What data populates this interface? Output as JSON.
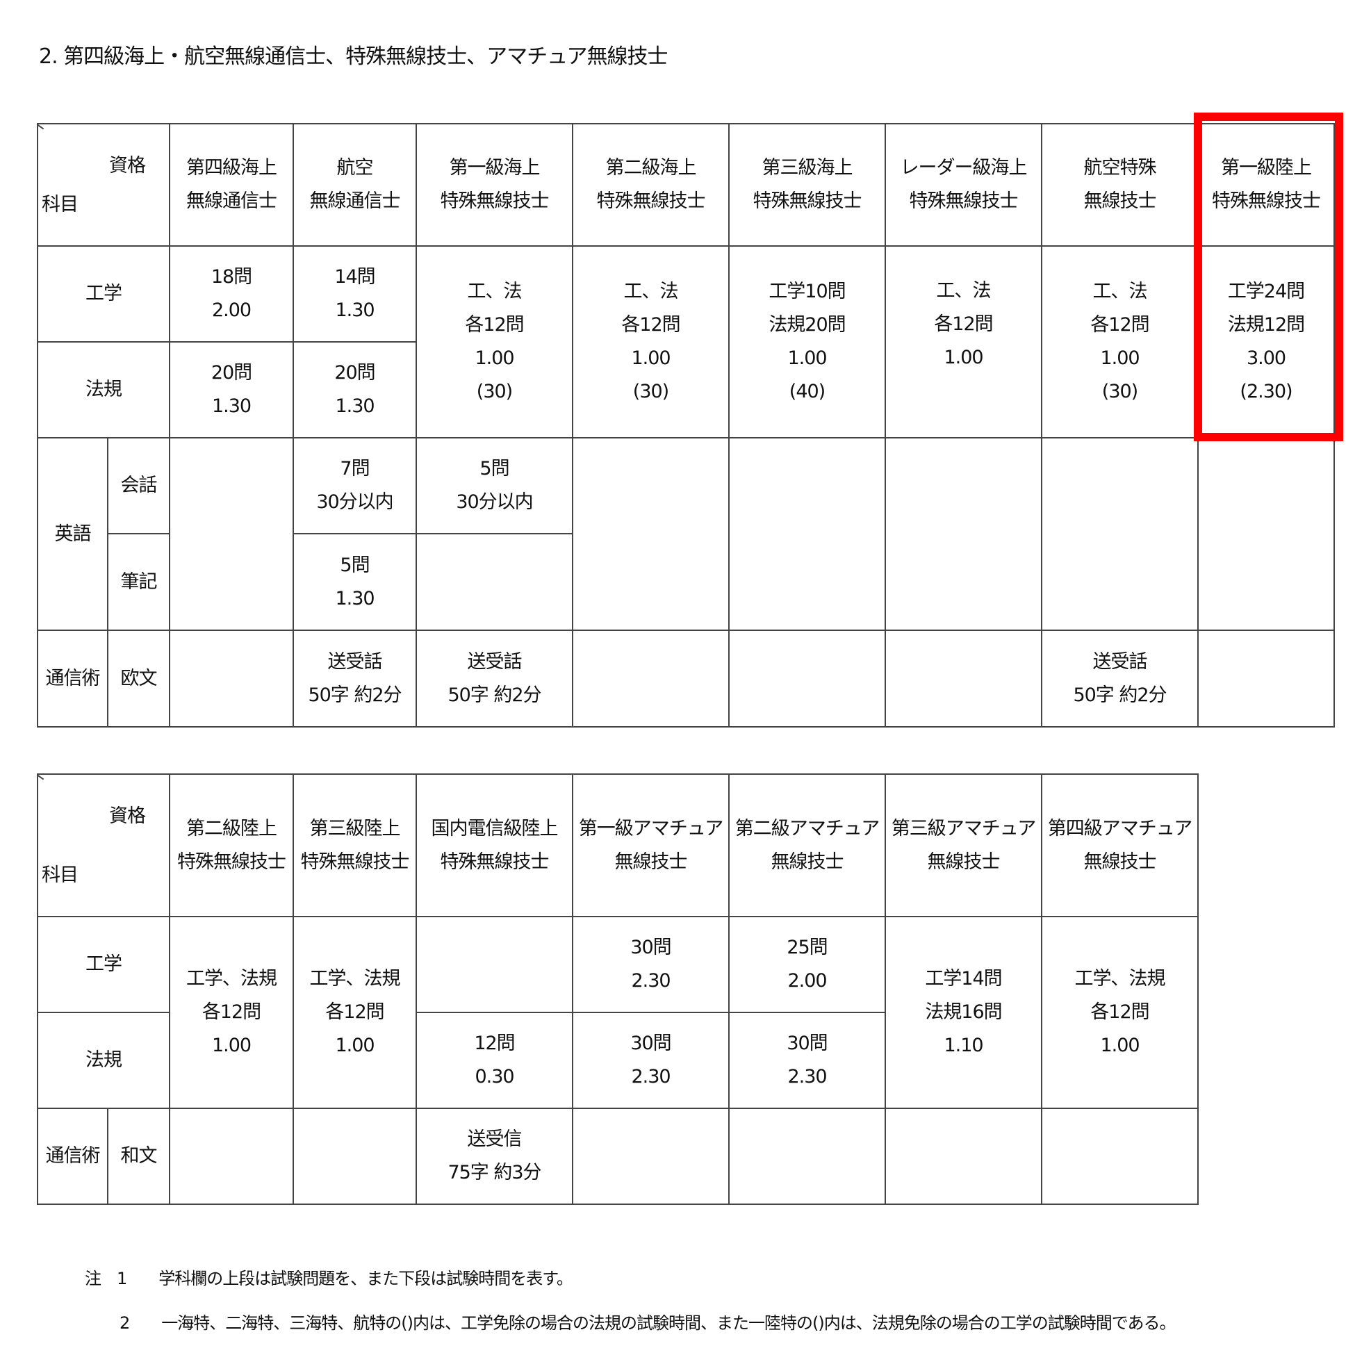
{
  "title": "2. 第四級海上・航空無線通信士、特殊無線技士、アマチュア無線技士",
  "corner": {
    "qualification": "資格",
    "subject": "科目"
  },
  "subjects": {
    "engineering": "工学",
    "law": "法規",
    "english": "英語",
    "conversation": "会話",
    "writing": "筆記",
    "telegraphy": "通信術",
    "european": "欧文",
    "japanese": "和文"
  },
  "table1": {
    "headers": [
      "第四級海上\n無線通信士",
      "航空\n無線通信士",
      "第一級海上\n特殊無線技士",
      "第二級海上\n特殊無線技士",
      "第三級海上\n特殊無線技士",
      "レーダー級海上\n特殊無線技士",
      "航空特殊\n無線技士",
      "第一級陸上\n特殊無線技士"
    ],
    "engineering": [
      "18問\n2.00",
      "14問\n1.30"
    ],
    "combined": [
      "工、法\n各12問\n1.00\n(30)",
      "工、法\n各12問\n1.00\n(30)",
      "工学10問\n法規20問\n1.00\n(40)",
      "工、法\n各12問\n1.00",
      "工、法\n各12問\n1.00\n(30)",
      "工学24問\n法規12問\n3.00\n(2.30)"
    ],
    "law": [
      "20問\n1.30",
      "20問\n1.30"
    ],
    "conversation": [
      "",
      "7問\n30分以内",
      "5問\n30分以内"
    ],
    "writing": [
      "5問\n1.30",
      ""
    ],
    "telegraphy": [
      "",
      "送受話\n50字 約2分",
      "送受話\n50字 約2分",
      "",
      "",
      "",
      "送受話\n50字 約2分",
      ""
    ],
    "highlight_color": "#ff0000"
  },
  "table2": {
    "headers": [
      "第二級陸上\n特殊無線技士",
      "第三級陸上\n特殊無線技士",
      "国内電信級陸上\n特殊無線技士",
      "第一級アマチュア\n無線技士",
      "第二級アマチュア\n無線技士",
      "第三級アマチュア\n無線技士",
      "第四級アマチュア\n無線技士"
    ],
    "rikuto2": "工学、法規\n各12問\n1.00",
    "rikuto3": "工学、法規\n各12問\n1.00",
    "kokunai_eng": "",
    "ama1_eng": "30問\n2.30",
    "ama2_eng": "25問\n2.00",
    "ama3": "工学14問\n法規16問\n1.10",
    "ama4": "工学、法規\n各12問\n1.00",
    "kokunai_law": "12問\n0.30",
    "ama1_law": "30問\n2.30",
    "ama2_law": "30問\n2.30",
    "telegraphy": [
      "",
      "",
      "送受信\n75字 約3分",
      "",
      "",
      "",
      ""
    ]
  },
  "notes": [
    {
      "label": "注　1",
      "text": "学科欄の上段は試験問題を、また下段は試験時間を表す。"
    },
    {
      "label": "2",
      "text": "一海特、二海特、三海特、航特の()内は、工学免除の場合の法規の試験時間、また一陸特の()内は、法規免除の場合の工学の試験時間である。"
    }
  ]
}
